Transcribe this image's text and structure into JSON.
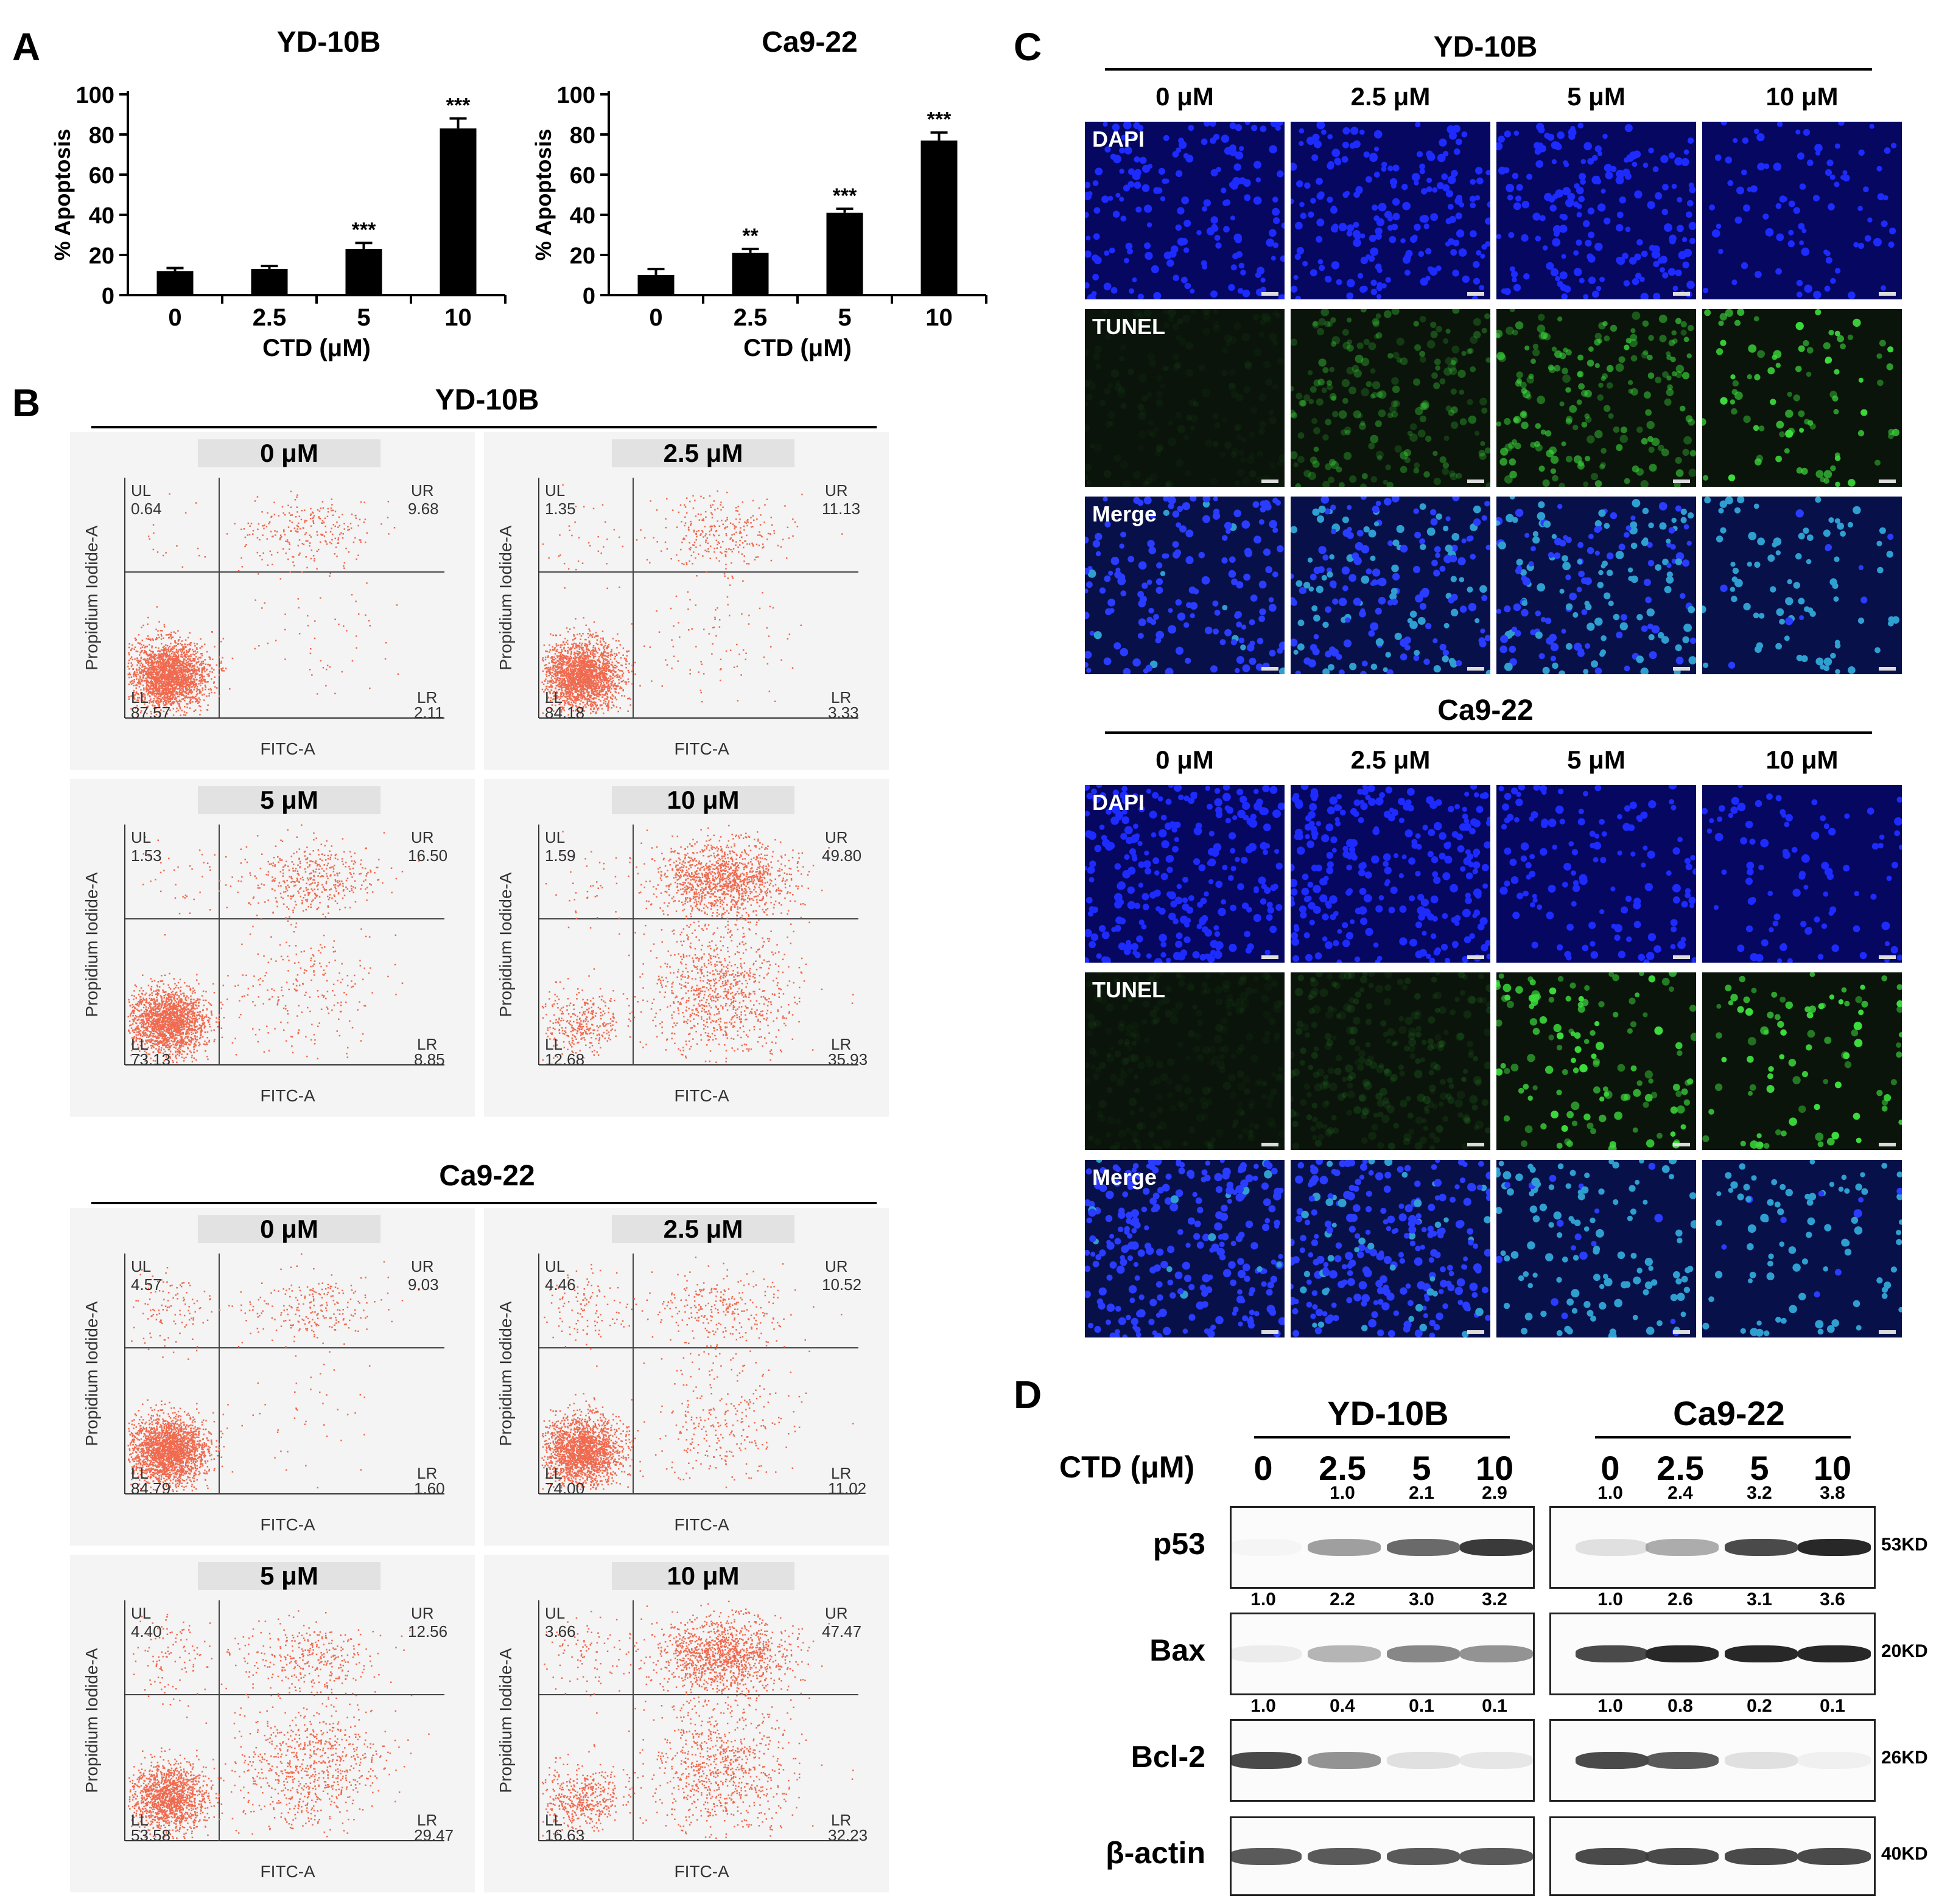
{
  "panel_A": {
    "letter": "A",
    "xlabel": "CTD (μM)",
    "ylabel": "% Apoptosis",
    "yticks": [
      "0",
      "20",
      "40",
      "60",
      "80",
      "100"
    ],
    "charts": [
      {
        "title": "YD-10B",
        "categories": [
          "0",
          "2.5",
          "5",
          "10"
        ],
        "values": [
          12,
          13,
          23,
          83
        ],
        "errors": [
          1.5,
          1.5,
          3,
          5
        ],
        "sig": [
          "",
          "",
          "***",
          "***"
        ]
      },
      {
        "title": "Ca9-22",
        "categories": [
          "0",
          "2.5",
          "5",
          "10"
        ],
        "values": [
          10,
          21,
          41,
          77
        ],
        "errors": [
          3,
          2,
          2,
          4
        ],
        "sig": [
          "",
          "**",
          "***",
          "***"
        ]
      }
    ]
  },
  "panel_B": {
    "letter": "B",
    "xaxis": "FITC-A",
    "yaxis": "Propidium Iodide-A",
    "quad_labels": {
      "ul": "UL",
      "ur": "UR",
      "ll": "LL",
      "lr": "LR"
    },
    "groups": [
      {
        "title": "YD-10B",
        "plots": [
          {
            "conc": "0 μM",
            "ul": "0.64",
            "ur": "9.68",
            "ll": "87.57",
            "lr": "2.11"
          },
          {
            "conc": "2.5 μM",
            "ul": "1.35",
            "ur": "11.13",
            "ll": "84.18",
            "lr": "3.33"
          },
          {
            "conc": "5 μM",
            "ul": "1.53",
            "ur": "16.50",
            "ll": "73.13",
            "lr": "8.85"
          },
          {
            "conc": "10 μM",
            "ul": "1.59",
            "ur": "49.80",
            "ll": "12.68",
            "lr": "35.93"
          }
        ]
      },
      {
        "title": "Ca9-22",
        "plots": [
          {
            "conc": "0 μM",
            "ul": "4.57",
            "ur": "9.03",
            "ll": "84.79",
            "lr": "1.60"
          },
          {
            "conc": "2.5 μM",
            "ul": "4.46",
            "ur": "10.52",
            "ll": "74.00",
            "lr": "11.02"
          },
          {
            "conc": "5 μM",
            "ul": "4.40",
            "ur": "12.56",
            "ll": "53.58",
            "lr": "29.47"
          },
          {
            "conc": "10 μM",
            "ul": "3.66",
            "ur": "47.47",
            "ll": "16.63",
            "lr": "32.23"
          }
        ]
      }
    ]
  },
  "panel_C": {
    "letter": "C",
    "concs": [
      "0 μM",
      "2.5 μM",
      "5 μM",
      "10 μM"
    ],
    "channels": [
      "DAPI",
      "TUNEL",
      "Merge"
    ],
    "groups": [
      "YD-10B",
      "Ca9-22"
    ]
  },
  "panel_D": {
    "letter": "D",
    "conc_label": "CTD (μM)",
    "groups": [
      "YD-10B",
      "Ca9-22"
    ],
    "concs": [
      "0",
      "2.5",
      "5",
      "10"
    ],
    "proteins": [
      {
        "name": "p53",
        "kd": "53KD",
        "yd": [
          "",
          "1.0",
          "2.1",
          "2.9"
        ],
        "ca": [
          "1.0",
          "2.4",
          "3.2",
          "3.8"
        ]
      },
      {
        "name": "Bax",
        "kd": "20KD",
        "yd": [
          "1.0",
          "2.2",
          "3.0",
          "3.2"
        ],
        "ca": [
          "1.0",
          "2.6",
          "3.1",
          "3.6"
        ]
      },
      {
        "name": "Bcl-2",
        "kd": "26KD",
        "yd": [
          "1.0",
          "0.4",
          "0.1",
          "0.1"
        ],
        "ca": [
          "1.0",
          "0.8",
          "0.2",
          "0.1"
        ]
      },
      {
        "name": "β-actin",
        "kd": "40KD"
      }
    ]
  },
  "colors": {
    "dapi": "#0a1190",
    "tunel": "#2fb82f",
    "dot": "#f06a4f",
    "bar": "#000000"
  }
}
